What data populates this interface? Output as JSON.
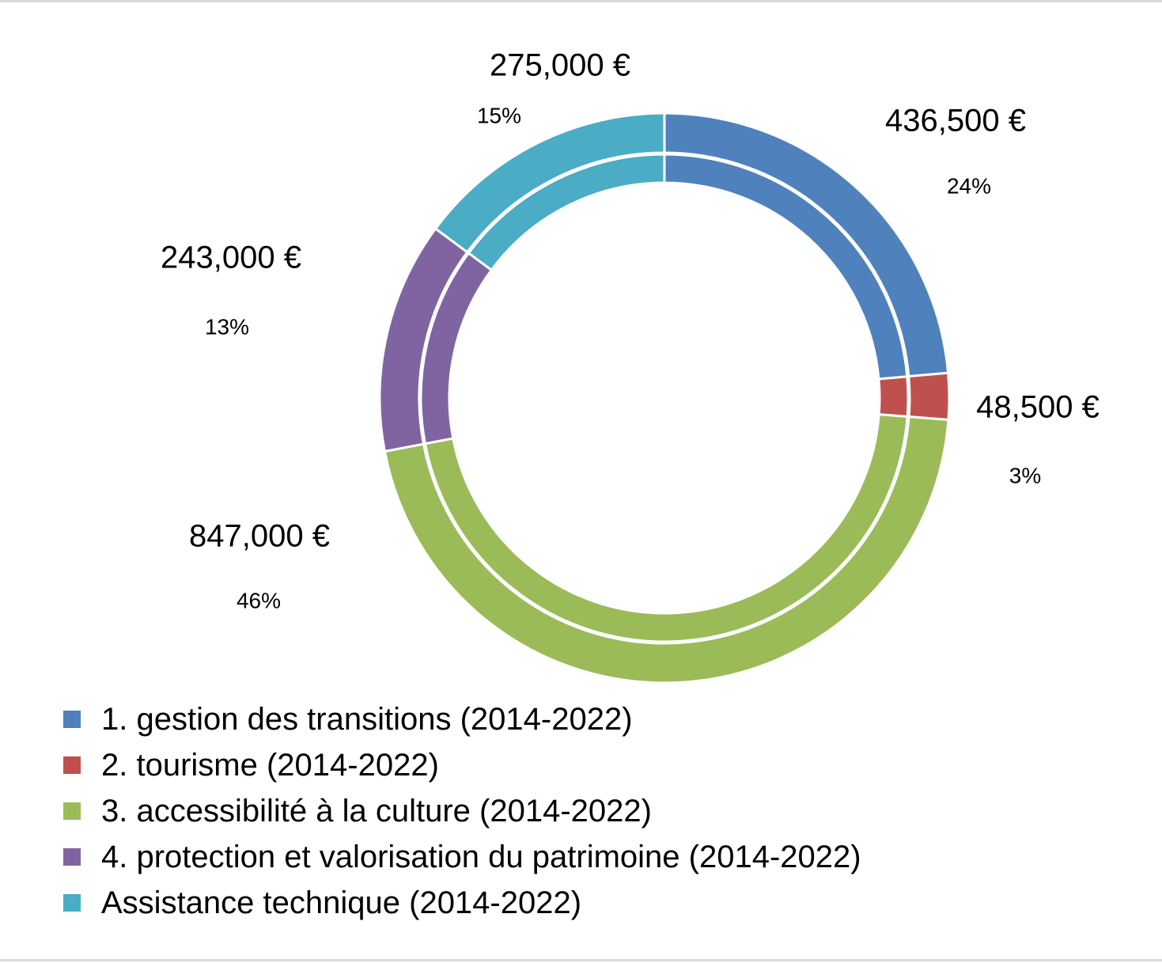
{
  "chart_data": {
    "type": "pie",
    "variant": "double-ring-doughnut",
    "title": "",
    "categories": [
      "1. gestion des transitions (2014-2022)",
      "2. tourisme (2014-2022)",
      "3. accessibilité à la culture (2014-2022)",
      "4. protection et valorisation du patrimoine (2014-2022)",
      "Assistance technique (2014-2022)"
    ],
    "values": [
      436500,
      48500,
      847000,
      243000,
      275000
    ],
    "value_labels": [
      "436,500 €",
      "48,500 €",
      "847,000 €",
      "243,000 €",
      "275,000 €"
    ],
    "percent_labels": [
      "24%",
      "3%",
      "46%",
      "13%",
      "15%"
    ],
    "colors": [
      "#4f81bd",
      "#c0504d",
      "#9bbb59",
      "#8064a2",
      "#4bacc6"
    ],
    "legend_position": "bottom-left",
    "start_angle": "top, clockwise"
  }
}
